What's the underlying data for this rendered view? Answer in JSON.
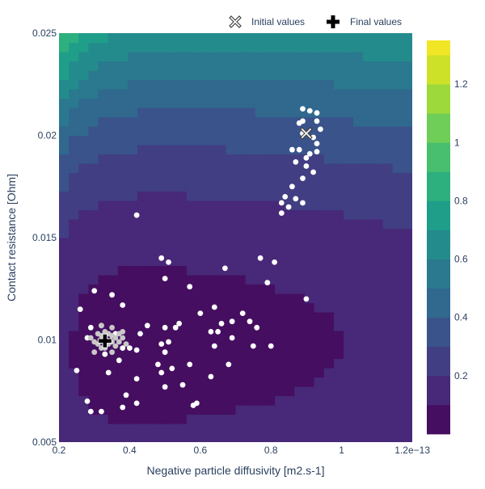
{
  "chart_data": {
    "type": "contour",
    "xlabel": "Negative particle diffusivity [m2.s-1]",
    "ylabel": "Contact resistance [Ohm]",
    "xlim": [
      2e-14,
      1.2e-13
    ],
    "ylim": [
      0.005,
      0.025
    ],
    "x_ticks": [
      {
        "value": 2e-14,
        "label": "0.2"
      },
      {
        "value": 4e-14,
        "label": "0.4"
      },
      {
        "value": 6e-14,
        "label": "0.6"
      },
      {
        "value": 8e-14,
        "label": "0.8"
      },
      {
        "value": 1e-13,
        "label": "1"
      },
      {
        "value": 1.2e-13,
        "label": "1.2e−13"
      }
    ],
    "y_ticks": [
      {
        "value": 0.005,
        "label": "0.005"
      },
      {
        "value": 0.01,
        "label": "0.01"
      },
      {
        "value": 0.015,
        "label": "0.015"
      },
      {
        "value": 0.02,
        "label": "0.02"
      },
      {
        "value": 0.025,
        "label": "0.025"
      }
    ],
    "colorscale": "Viridis",
    "colorbar": {
      "range": [
        0,
        1.35
      ],
      "levels": [
        0,
        0.1,
        0.2,
        0.3,
        0.4,
        0.5,
        0.6,
        0.7,
        0.8,
        0.9,
        1.0,
        1.1,
        1.2,
        1.3,
        1.35
      ],
      "ticks": [
        {
          "value": 0.2,
          "label": "0.2"
        },
        {
          "value": 0.4,
          "label": "0.4"
        },
        {
          "value": 0.6,
          "label": "0.6"
        },
        {
          "value": 0.8,
          "label": "0.8"
        },
        {
          "value": 1.0,
          "label": "1"
        },
        {
          "value": 1.2,
          "label": "1.2"
        }
      ]
    },
    "legend": {
      "placement": "top",
      "items": [
        {
          "label": "Initial values",
          "symbol": "x-open"
        },
        {
          "label": "Final values",
          "symbol": "cross"
        }
      ]
    },
    "markers": {
      "initial": {
        "x": 9e-14,
        "y": 0.0201
      },
      "final": {
        "x": 3.3e-14,
        "y": 0.00995
      }
    },
    "samples": {
      "color": "#ffffff",
      "points": [
        [
          8.9e-14,
          0.0213
        ],
        [
          9.1e-14,
          0.0212
        ],
        [
          9.3e-14,
          0.0211
        ],
        [
          9.3e-14,
          0.0207
        ],
        [
          8.8e-14,
          0.0206
        ],
        [
          8.9e-14,
          0.0207
        ],
        [
          9.4e-14,
          0.0203
        ],
        [
          8.9e-14,
          0.0201
        ],
        [
          9.2e-14,
          0.0199
        ],
        [
          9.3e-14,
          0.0196
        ],
        [
          8.6e-14,
          0.0193
        ],
        [
          8.8e-14,
          0.0193
        ],
        [
          9e-14,
          0.0189
        ],
        [
          9.1e-14,
          0.0191
        ],
        [
          9.3e-14,
          0.0192
        ],
        [
          9e-14,
          0.0185
        ],
        [
          8.7e-14,
          0.0187
        ],
        [
          9.2e-14,
          0.0182
        ],
        [
          8.9e-14,
          0.0179
        ],
        [
          8.6e-14,
          0.0175
        ],
        [
          8.4e-14,
          0.017
        ],
        [
          8.7e-14,
          0.0169
        ],
        [
          8.3e-14,
          0.0167
        ],
        [
          8.9e-14,
          0.0167
        ],
        [
          8.5e-14,
          0.0165
        ],
        [
          8.3e-14,
          0.0162
        ],
        [
          4.2e-14,
          0.0161
        ],
        [
          4.9e-14,
          0.014
        ],
        [
          5.1e-14,
          0.0138
        ],
        [
          6.7e-14,
          0.0135
        ],
        [
          7.7e-14,
          0.014
        ],
        [
          8.1e-14,
          0.0138
        ],
        [
          5e-14,
          0.013
        ],
        [
          5.7e-14,
          0.0126
        ],
        [
          7.9e-14,
          0.0128
        ],
        [
          3e-14,
          0.0124
        ],
        [
          3.5e-14,
          0.0122
        ],
        [
          9e-14,
          0.012
        ],
        [
          2.6e-14,
          0.0115
        ],
        [
          3.8e-14,
          0.0117
        ],
        [
          6.4e-14,
          0.0116
        ],
        [
          6e-14,
          0.0113
        ],
        [
          7.2e-14,
          0.0113
        ],
        [
          7.4e-14,
          0.0109
        ],
        [
          6.9e-14,
          0.0109
        ],
        [
          6.6e-14,
          0.0108
        ],
        [
          5.4e-14,
          0.0108
        ],
        [
          4.5e-14,
          0.0107
        ],
        [
          5e-14,
          0.0106
        ],
        [
          5.3e-14,
          0.0106
        ],
        [
          6.3e-14,
          0.0104
        ],
        [
          6.5e-14,
          0.0104
        ],
        [
          7.6e-14,
          0.0106
        ],
        [
          3.2e-14,
          0.0107
        ],
        [
          2.9e-14,
          0.0106
        ],
        [
          3.6e-14,
          0.0103
        ],
        [
          4.3e-14,
          0.0103
        ],
        [
          2.8e-14,
          0.0101
        ],
        [
          5.1e-14,
          0.0099
        ],
        [
          6.9e-14,
          0.0101
        ],
        [
          4.9e-14,
          0.0098
        ],
        [
          3.8e-14,
          0.0096
        ],
        [
          4e-14,
          0.0096
        ],
        [
          6.4e-14,
          0.0097
        ],
        [
          7.5e-14,
          0.0097
        ],
        [
          8e-14,
          0.0097
        ],
        [
          4.2e-14,
          0.0095
        ],
        [
          5e-14,
          0.0094
        ],
        [
          3.3e-14,
          0.0093
        ],
        [
          3.7e-14,
          0.009
        ],
        [
          4.8e-14,
          0.0088
        ],
        [
          5.7e-14,
          0.0088
        ],
        [
          6.8e-14,
          0.0088
        ],
        [
          5.2e-14,
          0.0086
        ],
        [
          2.5e-14,
          0.0085
        ],
        [
          3.4e-14,
          0.0084
        ],
        [
          4.9e-14,
          0.0084
        ],
        [
          4.2e-14,
          0.0081
        ],
        [
          6.3e-14,
          0.0082
        ],
        [
          5e-14,
          0.0077
        ],
        [
          5.5e-14,
          0.0078
        ],
        [
          3.9e-14,
          0.0073
        ],
        [
          2.8e-14,
          0.007
        ],
        [
          4.2e-14,
          0.0069
        ],
        [
          5.9e-14,
          0.0069
        ],
        [
          5.8e-14,
          0.0068
        ],
        [
          3.8e-14,
          0.0067
        ],
        [
          2.9e-14,
          0.0065
        ],
        [
          3.2e-14,
          0.0065
        ]
      ]
    },
    "cluster": {
      "color": "#c8c8c8",
      "points": [
        [
          2.9e-14,
          0.0101
        ],
        [
          3e-14,
          0.0099
        ],
        [
          3.1e-14,
          0.0103
        ],
        [
          3.1e-14,
          0.0098
        ],
        [
          3.2e-14,
          0.0102
        ],
        [
          3.2e-14,
          0.0096
        ],
        [
          3.3e-14,
          0.0104
        ],
        [
          3.3e-14,
          0.0101
        ],
        [
          3.4e-14,
          0.0103
        ],
        [
          3.4e-14,
          0.0098
        ],
        [
          3.5e-14,
          0.0102
        ],
        [
          3.5e-14,
          0.0099
        ],
        [
          3.6e-14,
          0.0101
        ],
        [
          3.6e-14,
          0.0097
        ],
        [
          3.7e-14,
          0.0103
        ],
        [
          3.7e-14,
          0.0099
        ],
        [
          3.8e-14,
          0.0101
        ],
        [
          3.8e-14,
          0.0104
        ],
        [
          3e-14,
          0.0094
        ],
        [
          3.3e-14,
          0.0096
        ],
        [
          3.5e-14,
          0.0094
        ],
        [
          3.2e-14,
          0.0107
        ],
        [
          3.5e-14,
          0.0106
        ],
        [
          3.9e-14,
          0.0098
        ]
      ]
    }
  }
}
